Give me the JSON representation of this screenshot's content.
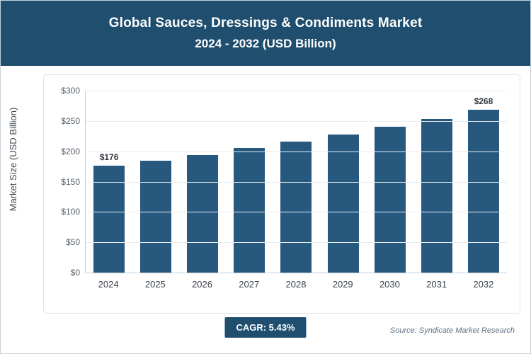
{
  "header": {
    "title": "Global Sauces, Dressings & Condiments Market",
    "subtitle": "2024 - 2032 (USD Billion)"
  },
  "colors": {
    "header_bg": "#1f4e6e",
    "bar": "#27597f",
    "badge_bg": "#1f4e6e"
  },
  "chart_data": {
    "type": "bar",
    "title": "Global Sauces, Dressings & Condiments Market",
    "subtitle": "2024 - 2032 (USD Billion)",
    "categories": [
      "2024",
      "2025",
      "2026",
      "2027",
      "2028",
      "2029",
      "2030",
      "2031",
      "2032"
    ],
    "values": [
      176,
      184,
      194,
      205,
      216,
      228,
      240,
      253,
      268
    ],
    "value_labels": {
      "first": "$176",
      "last": "$268"
    },
    "xlabel": "",
    "ylabel": "Market Size (USD Billion)",
    "ylim": [
      0,
      300
    ],
    "ytick_step": 50,
    "ytick_prefix": "$",
    "grid": "horizontal",
    "legend": "none"
  },
  "footer": {
    "cagr_label": "CAGR: 5.43%",
    "source": "Source: Syndicate Market Research"
  }
}
